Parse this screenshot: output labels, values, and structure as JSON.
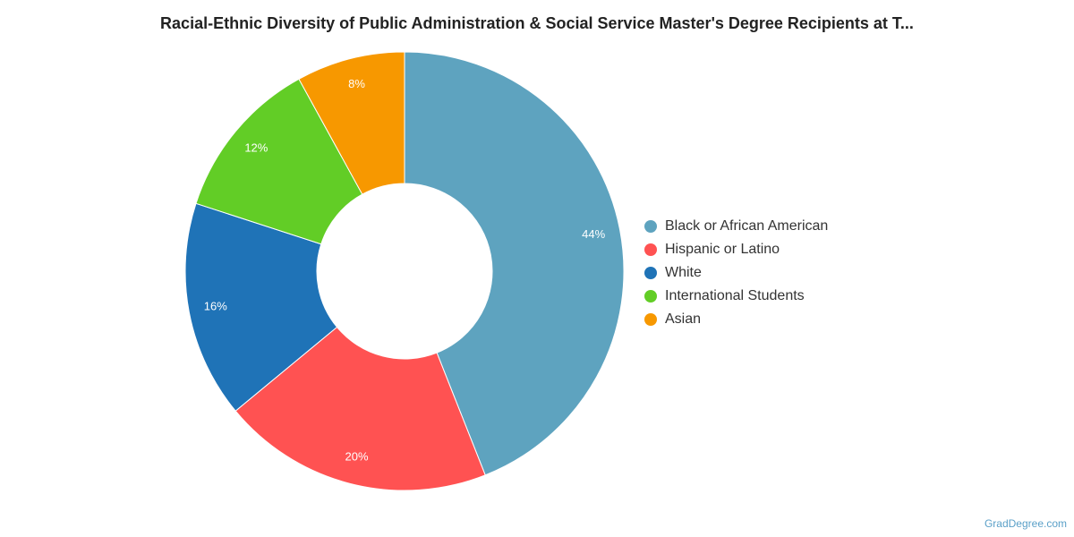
{
  "chart_data": {
    "type": "pie",
    "title": "Racial-Ethnic Diversity of Public Administration & Social Service Master's Degree Recipients at T...",
    "donut": true,
    "legend_position": "right",
    "slices": [
      {
        "name": "Black or African American",
        "value": 44,
        "label": "44%",
        "color": "#5ea3bf"
      },
      {
        "name": "Hispanic or Latino",
        "value": 20,
        "label": "20%",
        "color": "#ff5252"
      },
      {
        "name": "White",
        "value": 16,
        "label": "16%",
        "color": "#1f73b7"
      },
      {
        "name": "International Students",
        "value": 12,
        "label": "12%",
        "color": "#62cd26"
      },
      {
        "name": "Asian",
        "value": 8,
        "label": "8%",
        "color": "#f79800"
      }
    ]
  },
  "footer": {
    "credit": "GradDegree.com"
  }
}
